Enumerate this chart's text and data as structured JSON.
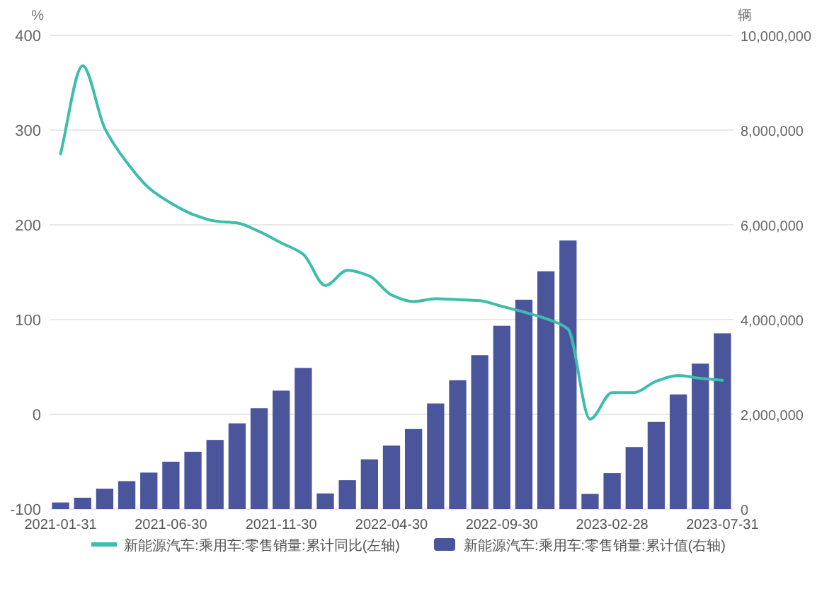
{
  "chart_data": {
    "type": "bar",
    "categories": [
      "2021-01-31",
      null,
      null,
      null,
      null,
      "2021-06-30",
      null,
      null,
      null,
      null,
      "2021-11-30",
      null,
      null,
      null,
      null,
      "2022-04-30",
      null,
      null,
      null,
      null,
      "2022-09-30",
      null,
      null,
      null,
      null,
      "2023-02-28",
      null,
      null,
      null,
      null,
      "2023-07-31"
    ],
    "series": [
      {
        "name": "新能源汽车:乘用车:零售销量:累计同比(左轴)",
        "type": "line",
        "color": "#3dbdac",
        "values": [
          275,
          368,
          302,
          266,
          239,
          223,
          211,
          204,
          202,
          193,
          181,
          169,
          136,
          152,
          146,
          126,
          119,
          122,
          121,
          120,
          114,
          108,
          101,
          90,
          -5,
          23,
          23,
          35,
          41,
          38,
          36
        ]
      },
      {
        "name": "新能源汽车:乘用车:零售销量:累计值(右轴)",
        "axis": "y2",
        "color": "#4b559c",
        "values": [
          140000,
          240000,
          430000,
          590000,
          770000,
          1000000,
          1210000,
          1460000,
          1810000,
          2130000,
          2500000,
          2980000,
          330000,
          610000,
          1050000,
          1340000,
          1690000,
          2230000,
          2720000,
          3250000,
          3870000,
          4420000,
          5020000,
          5670000,
          320000,
          760000,
          1310000,
          1840000,
          2420000,
          3070000,
          3710000
        ]
      }
    ],
    "ylabel": "%",
    "y2label": "辆",
    "ylim": [
      -100,
      400
    ],
    "yticks": [
      -100,
      0,
      100,
      200,
      300,
      400
    ],
    "y2lim": [
      0,
      10000000
    ],
    "y2ticks": [
      0,
      {
        "value": 2000000,
        "label": "2,000,000"
      },
      {
        "value": 4000000,
        "label": "4,000,000"
      },
      {
        "value": 6000000,
        "label": "6,000,000"
      },
      {
        "value": 8000000,
        "label": "8,000,000"
      },
      {
        "value": 10000000,
        "label": "10,000,000"
      }
    ],
    "grid": "y",
    "legend": "bottom"
  }
}
